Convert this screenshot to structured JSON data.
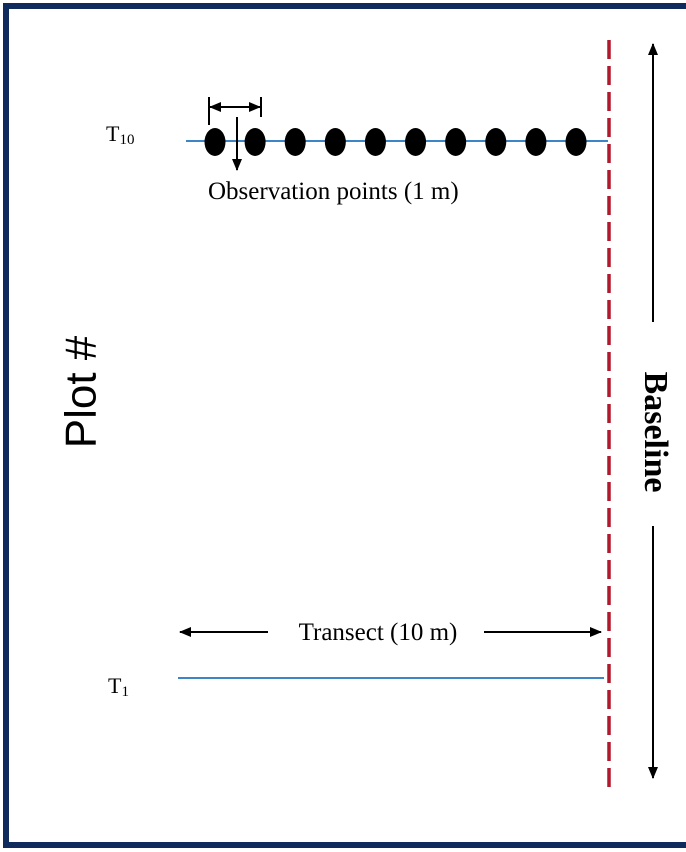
{
  "labels": {
    "plot": "Plot #",
    "baseline": "Baseline",
    "transect": "Transect (10 m)",
    "observation_points": "Observation points (1 m)",
    "t10_main": "T",
    "t10_sub": "10",
    "t1_main": "T",
    "t1_sub": "1"
  },
  "colors": {
    "frame": "#0f2a5c",
    "baseline_dash": "#b2182b",
    "transect_line": "#3d85c6",
    "point": "#000000",
    "text": "#000000"
  },
  "observation_point_count": 10
}
